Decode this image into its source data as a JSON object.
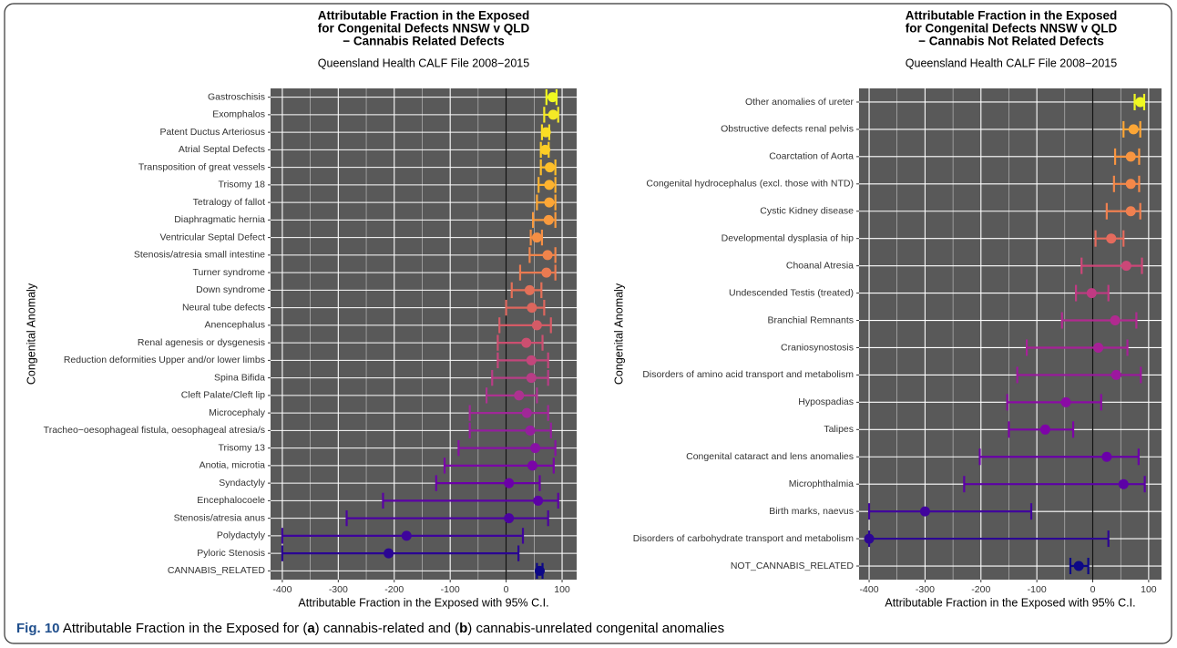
{
  "chart_data": [
    {
      "type": "errorbar",
      "title": [
        "Attributable Fraction in the Exposed",
        "for Congenital Defects NNSW v QLD",
        "− Cannabis Related Defects"
      ],
      "subtitle": "Queensland Health CALF File 2008−2015",
      "xlabel": "Attributable Fraction in the Exposed with 95% C.I.",
      "ylabel": "Congenital Anomaly",
      "categories": [
        "Gastroschisis",
        "Exomphalos",
        "Patent Ductus Arteriosus",
        "Atrial Septal Defects",
        "Transposition of great vessels",
        "Trisomy 18",
        "Tetralogy of fallot",
        "Diaphragmatic hernia",
        "Ventricular Septal Defect",
        "Stenosis/atresia small intestine",
        "Turner syndrome",
        "Down syndrome",
        "Neural tube defects",
        "Anencephalus",
        "Renal agenesis or dysgenesis",
        "Reduction deformities Upper and/or lower limbs",
        "Spina Bifida",
        "Cleft Palate/Cleft lip",
        "Microcephaly",
        "Tracheo−oesophageal fistula, oesophageal atresia/s",
        "Trisomy 13",
        "Anotia, microtia",
        "Syndactyly",
        "Encephalocoele",
        "Stenosis/atresia anus",
        "Polydactyly",
        "Pyloric Stenosis",
        "CANNABIS_RELATED"
      ],
      "values": [
        83,
        84,
        71,
        70,
        78,
        77,
        77,
        76,
        55,
        74,
        72,
        42,
        46,
        55,
        36,
        45,
        45,
        23,
        37,
        43,
        52,
        47,
        5,
        57,
        5,
        -178,
        -210,
        60
      ],
      "lower": [
        72,
        68,
        64,
        62,
        62,
        58,
        55,
        48,
        44,
        42,
        25,
        10,
        0,
        -12,
        -15,
        -15,
        -25,
        -35,
        -65,
        -65,
        -85,
        -110,
        -125,
        -220,
        -285,
        -400,
        -400,
        55
      ],
      "upper": [
        90,
        93,
        77,
        76,
        88,
        88,
        88,
        88,
        64,
        88,
        88,
        63,
        68,
        80,
        65,
        75,
        75,
        55,
        75,
        80,
        88,
        85,
        60,
        93,
        75,
        30,
        22,
        65
      ],
      "colors": [
        "#f0f921",
        "#f4ea26",
        "#f9dc24",
        "#fccd25",
        "#fdbf2a",
        "#feb32f",
        "#fca636",
        "#f99a3e",
        "#f58f44",
        "#f0844b",
        "#ea7a51",
        "#e47058",
        "#dd665d",
        "#d55b66",
        "#cc4f70",
        "#c3467b",
        "#b83d86",
        "#ad3290",
        "#a12898",
        "#951e9f",
        "#8810a5",
        "#7a05a7",
        "#6b00a8",
        "#5c01a6",
        "#4c02a1",
        "#3e049c",
        "#2a0593",
        "#0d0887"
      ],
      "xlim": [
        -421,
        126
      ],
      "xticks": [
        -400,
        -300,
        -200,
        -100,
        0,
        100
      ],
      "grid": true
    },
    {
      "type": "errorbar",
      "title": [
        "Attributable Fraction in the Exposed",
        "for Congenital Defects NNSW v QLD",
        "− Cannabis Not Related Defects"
      ],
      "subtitle": "Queensland Health CALF File 2008−2015",
      "xlabel": "Attributable Fraction in the Exposed with 95% C.I.",
      "ylabel": "Congenital Anomaly",
      "categories": [
        "Other anomalies of ureter",
        "Obstructive defects renal pelvis",
        "Coarctation of Aorta",
        "Congenital hydrocephalus (excl. those with NTD)",
        "Cystic Kidney disease",
        "Developmental dysplasia of hip",
        "Choanal Atresia",
        "Undescended Testis (treated)",
        "Branchial Remnants",
        "Craniosynostosis",
        "Disorders of amino acid transport and metabolism",
        "Hypospadias",
        "Talipes",
        "Congenital cataract and lens anomalies",
        "Microphthalmia",
        "Birth marks, naevus",
        "Disorders of carbohydrate transport and metabolism",
        "NOT_CANNABIS_RELATED"
      ],
      "values": [
        85,
        73,
        68,
        68,
        68,
        33,
        60,
        -2,
        40,
        10,
        42,
        -48,
        -85,
        25,
        55,
        -300,
        -400,
        -25
      ],
      "lower": [
        75,
        55,
        40,
        38,
        25,
        5,
        -20,
        -30,
        -55,
        -118,
        -135,
        -153,
        -150,
        -202,
        -230,
        -400,
        -400,
        -40
      ],
      "upper": [
        92,
        85,
        83,
        83,
        85,
        55,
        88,
        28,
        78,
        62,
        86,
        15,
        -35,
        82,
        93,
        -110,
        28,
        -8
      ],
      "colors": [
        "#f0f921",
        "#fca636",
        "#f89540",
        "#f48849",
        "#f08050",
        "#e56b5d",
        "#cc4778",
        "#c03a83",
        "#b12a90",
        "#a72197",
        "#9c179e",
        "#8b0aa5",
        "#7e03a8",
        "#6a00a8",
        "#5c01a6",
        "#41049d",
        "#2c0594",
        "#0d0887"
      ],
      "xlim": [
        -418,
        123
      ],
      "xticks": [
        -400,
        -300,
        -200,
        -100,
        0,
        100
      ],
      "grid": true
    }
  ],
  "caption": {
    "label": "Fig. 10",
    "parts": [
      " Attributable Fraction in the Exposed for (",
      "a",
      ") cannabis-related and (",
      "b",
      ") cannabis-unrelated congenital anomalies"
    ]
  }
}
